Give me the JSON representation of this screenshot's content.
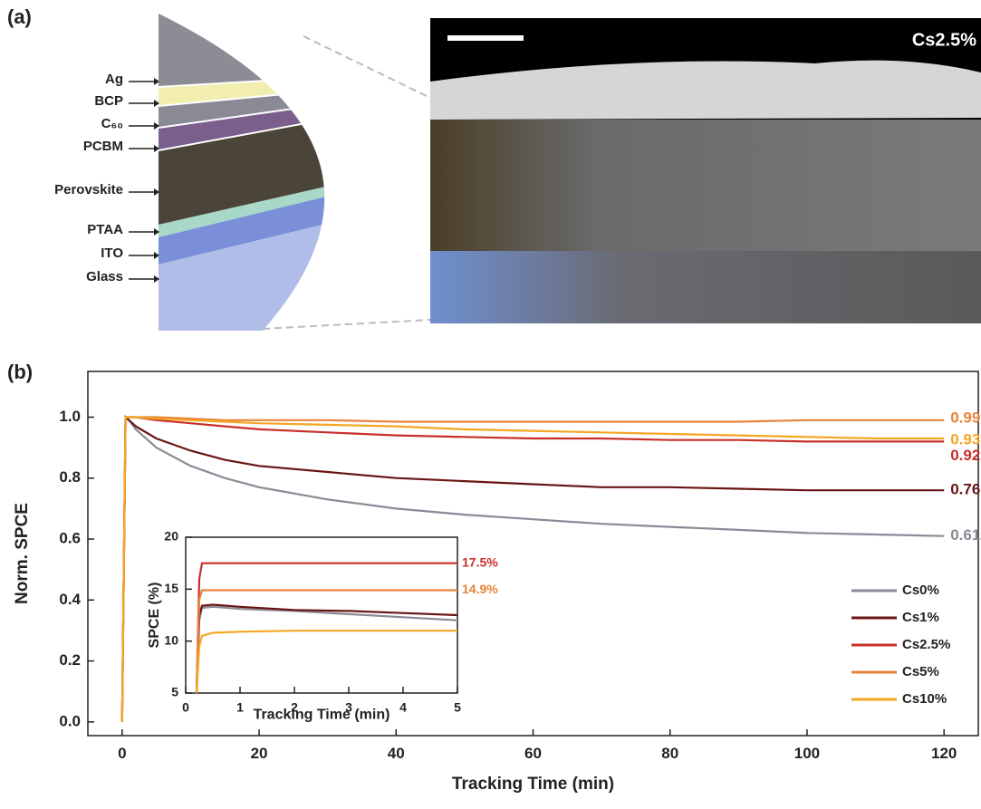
{
  "panel_a": {
    "label": "(a)",
    "layers": [
      "Ag",
      "BCP",
      "C₆₀",
      "PCBM",
      "Perovskite",
      "PTAA",
      "ITO",
      "Glass"
    ],
    "sem_label": "Cs2.5%"
  },
  "chart_data": [
    {
      "type": "line",
      "panel_label": "(b)",
      "xlabel": "Tracking Time (min)",
      "ylabel": "Norm. SPCE",
      "xlim": [
        -5,
        125
      ],
      "ylim": [
        -0.045,
        1.15
      ],
      "xticks": [
        0,
        20,
        40,
        60,
        80,
        100,
        120
      ],
      "yticks": [
        {
          "value": 0,
          "label": "0.0"
        },
        0.2,
        0.4,
        0.6,
        0.8,
        {
          "value": 1,
          "label": "1.0"
        }
      ],
      "legend": "lower right",
      "x": [
        0,
        0.5,
        1,
        2,
        5,
        10,
        15,
        20,
        30,
        40,
        50,
        60,
        70,
        80,
        90,
        100,
        110,
        120
      ],
      "series": [
        {
          "name": "Cs0%",
          "color": "#8a8a96",
          "end_label": 0.61,
          "values": [
            0,
            1.0,
            0.99,
            0.96,
            0.9,
            0.84,
            0.8,
            0.77,
            0.73,
            0.7,
            0.68,
            0.665,
            0.65,
            0.64,
            0.63,
            0.62,
            0.615,
            0.61
          ]
        },
        {
          "name": "Cs1%",
          "color": "#6b1414",
          "end_label": 0.76,
          "values": [
            0,
            1.0,
            0.99,
            0.97,
            0.93,
            0.89,
            0.86,
            0.84,
            0.82,
            0.8,
            0.79,
            0.78,
            0.77,
            0.77,
            0.765,
            0.76,
            0.76,
            0.76
          ]
        },
        {
          "name": "Cs2.5%",
          "color": "#c8302a",
          "end_label": 0.92,
          "values": [
            0,
            1,
            1,
            1,
            0.99,
            0.98,
            0.97,
            0.96,
            0.95,
            0.94,
            0.935,
            0.93,
            0.93,
            0.925,
            0.925,
            0.92,
            0.92,
            0.92
          ]
        },
        {
          "name": "Cs5%",
          "color": "#e8833a",
          "end_label": 0.99,
          "values": [
            0,
            1,
            1,
            1,
            1,
            0.995,
            0.99,
            0.99,
            0.99,
            0.985,
            0.985,
            0.985,
            0.985,
            0.985,
            0.985,
            0.99,
            0.99,
            0.99
          ]
        },
        {
          "name": "Cs10%",
          "color": "#f5a623",
          "end_label": 0.93,
          "values": [
            0,
            1,
            1,
            1,
            0.995,
            0.99,
            0.985,
            0.98,
            0.975,
            0.97,
            0.96,
            0.955,
            0.95,
            0.945,
            0.94,
            0.935,
            0.93,
            0.93
          ]
        }
      ]
    },
    {
      "type": "line",
      "xlabel": "Tracking Time (min)",
      "ylabel": "SPCE (%)",
      "xlim": [
        0,
        5
      ],
      "ylim": [
        5,
        20
      ],
      "xticks": [
        0,
        1,
        2,
        3,
        4,
        5
      ],
      "yticks": [
        5,
        10,
        15,
        20
      ],
      "x": [
        0.2,
        0.25,
        0.3,
        0.5,
        1,
        2,
        3,
        4,
        5
      ],
      "series": [
        {
          "color": "#8a8a96",
          "values": [
            5,
            12,
            13.2,
            13.3,
            13.1,
            12.9,
            12.6,
            12.3,
            12.0
          ]
        },
        {
          "color": "#6b1414",
          "values": [
            5,
            12.5,
            13.4,
            13.5,
            13.3,
            13.0,
            12.9,
            12.7,
            12.5
          ]
        },
        {
          "color": "#c8302a",
          "values": [
            5,
            16,
            17.5,
            17.5,
            17.5,
            17.5,
            17.5,
            17.5,
            17.5
          ],
          "value_labels": [
            null,
            null,
            null,
            null,
            null,
            null,
            null,
            null,
            "17.5%"
          ]
        },
        {
          "color": "#e8833a",
          "values": [
            5,
            14,
            14.9,
            14.9,
            14.9,
            14.9,
            14.9,
            14.9,
            14.9
          ],
          "value_labels": [
            null,
            null,
            null,
            null,
            null,
            null,
            null,
            null,
            "14.9%"
          ]
        },
        {
          "color": "#f5a623",
          "values": [
            5,
            9.5,
            10.5,
            10.8,
            10.9,
            11.0,
            11.0,
            11.0,
            11.0
          ]
        }
      ]
    }
  ]
}
